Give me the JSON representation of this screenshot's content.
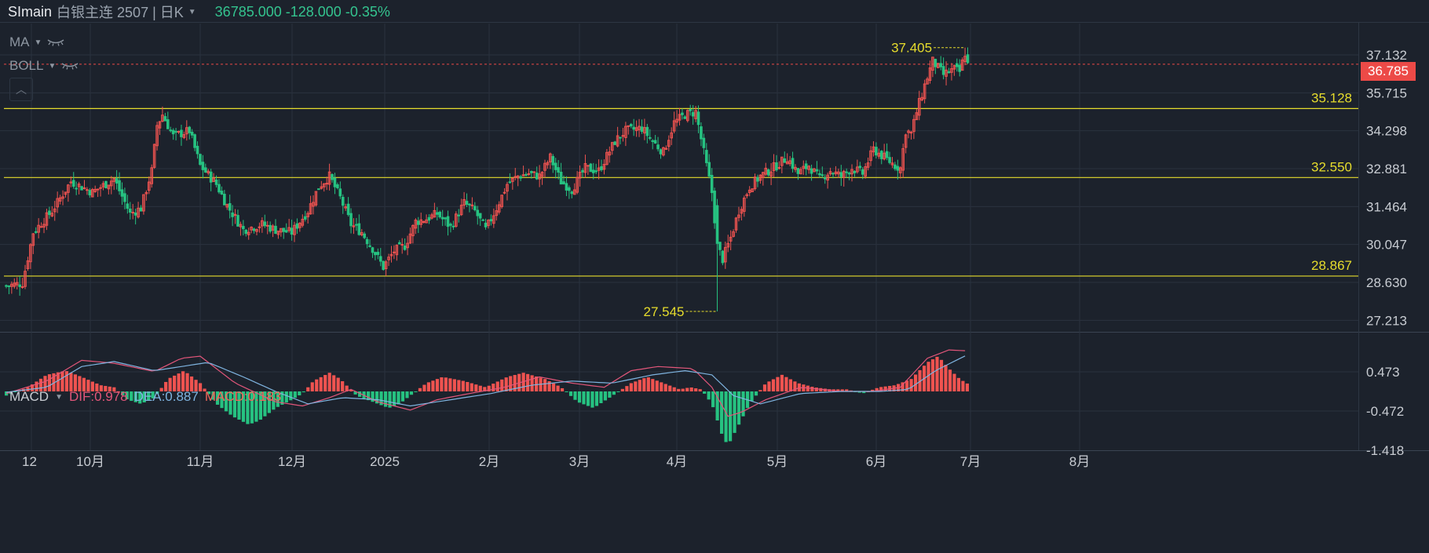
{
  "header": {
    "symbol": "SImain",
    "name": "白银主连 2507 | 日K",
    "quote": "36785.000 -128.000 -0.35%"
  },
  "indicators": {
    "ma_label": "MA",
    "boll_label": "BOLL"
  },
  "macd_legend": {
    "label": "MACD",
    "dif": "DIF:0.978",
    "dea": "DEA:0.887",
    "macd": "MACD:0.183"
  },
  "last_price_tag": "36.785",
  "colors": {
    "up": "#ef5350",
    "down": "#26c281",
    "level": "#e6dc2c",
    "dif": "#e2567a",
    "dea": "#7fb4e0",
    "bg": "#1c222c"
  },
  "chart_data": [
    {
      "type": "candlestick",
      "y_ticks": [
        "37.132",
        "35.715",
        "34.298",
        "32.881",
        "31.464",
        "30.047",
        "28.630",
        "27.213"
      ],
      "ylim": [
        27.213,
        37.132
      ],
      "x_labels": [
        "12",
        "10月",
        "11月",
        "12月",
        "2025",
        "2月",
        "3月",
        "4月",
        "5月",
        "6月",
        "7月",
        "8月"
      ],
      "horizontal_levels": [
        {
          "value": 35.128,
          "label": "35.128"
        },
        {
          "value": 32.55,
          "label": "32.550"
        },
        {
          "value": 28.867,
          "label": "28.867"
        }
      ],
      "annotations": [
        {
          "label": "37.405",
          "value": 37.405
        },
        {
          "label": "27.545",
          "value": 27.545
        }
      ],
      "last_price": 36.785,
      "close_path": [
        [
          0,
          28.5
        ],
        [
          6,
          28.6
        ],
        [
          10,
          30.5
        ],
        [
          17,
          31.3
        ],
        [
          24,
          32.4
        ],
        [
          32,
          32.0
        ],
        [
          40,
          32.5
        ],
        [
          46,
          31.2
        ],
        [
          50,
          31.4
        ],
        [
          54,
          32.8
        ],
        [
          56,
          34.5
        ],
        [
          58,
          34.9
        ],
        [
          62,
          34.1
        ],
        [
          68,
          34.3
        ],
        [
          72,
          33.0
        ],
        [
          78,
          32.3
        ],
        [
          82,
          31.5
        ],
        [
          88,
          30.6
        ],
        [
          95,
          30.8
        ],
        [
          100,
          30.6
        ],
        [
          106,
          30.5
        ],
        [
          112,
          31.3
        ],
        [
          116,
          32.2
        ],
        [
          120,
          32.6
        ],
        [
          124,
          31.8
        ],
        [
          128,
          30.8
        ],
        [
          132,
          30.5
        ],
        [
          136,
          29.9
        ],
        [
          140,
          29.2
        ],
        [
          144,
          29.8
        ],
        [
          148,
          30.0
        ],
        [
          152,
          30.9
        ],
        [
          156,
          31.0
        ],
        [
          160,
          31.2
        ],
        [
          165,
          30.7
        ],
        [
          170,
          31.6
        ],
        [
          174,
          31.3
        ],
        [
          178,
          30.6
        ],
        [
          182,
          31.4
        ],
        [
          186,
          32.3
        ],
        [
          190,
          32.6
        ],
        [
          194,
          32.7
        ],
        [
          198,
          32.6
        ],
        [
          202,
          33.3
        ],
        [
          206,
          32.4
        ],
        [
          210,
          32.1
        ],
        [
          215,
          32.9
        ],
        [
          220,
          32.8
        ],
        [
          226,
          33.9
        ],
        [
          230,
          34.3
        ],
        [
          236,
          34.4
        ],
        [
          240,
          33.9
        ],
        [
          244,
          33.5
        ],
        [
          248,
          34.6
        ],
        [
          252,
          34.9
        ],
        [
          256,
          35.0
        ],
        [
          262,
          32.0
        ],
        [
          264,
          30.0
        ],
        [
          266,
          29.5
        ],
        [
          269,
          30.3
        ],
        [
          272,
          31.3
        ],
        [
          276,
          32.2
        ],
        [
          280,
          32.6
        ],
        [
          286,
          33.0
        ],
        [
          290,
          33.3
        ],
        [
          294,
          32.7
        ],
        [
          298,
          33.0
        ],
        [
          302,
          32.5
        ],
        [
          306,
          32.8
        ],
        [
          310,
          32.6
        ],
        [
          314,
          32.9
        ],
        [
          318,
          32.7
        ],
        [
          322,
          33.6
        ],
        [
          326,
          33.3
        ],
        [
          330,
          33.0
        ],
        [
          332,
          32.9
        ],
        [
          334,
          34.3
        ],
        [
          336,
          34.2
        ],
        [
          338,
          35.0
        ],
        [
          341,
          36.0
        ],
        [
          344,
          36.9
        ],
        [
          348,
          36.4
        ],
        [
          352,
          36.6
        ],
        [
          354,
          36.5
        ],
        [
          356,
          37.2
        ],
        [
          357,
          36.785
        ]
      ]
    },
    {
      "type": "macd",
      "y_ticks": [
        "0.473",
        "-0.472",
        "-1.418"
      ],
      "ylim": [
        -1.418,
        1.418
      ],
      "dif": 0.978,
      "dea": 0.887,
      "macd": 0.183,
      "dif_path": [
        [
          0,
          -0.05
        ],
        [
          15,
          0.25
        ],
        [
          28,
          0.75
        ],
        [
          40,
          0.68
        ],
        [
          55,
          0.48
        ],
        [
          65,
          0.8
        ],
        [
          72,
          0.85
        ],
        [
          85,
          0.2
        ],
        [
          100,
          -0.25
        ],
        [
          110,
          -0.35
        ],
        [
          120,
          -0.15
        ],
        [
          128,
          0.05
        ],
        [
          138,
          -0.25
        ],
        [
          150,
          -0.45
        ],
        [
          160,
          -0.2
        ],
        [
          172,
          -0.05
        ],
        [
          185,
          0.1
        ],
        [
          198,
          0.35
        ],
        [
          210,
          0.2
        ],
        [
          222,
          0.1
        ],
        [
          232,
          0.5
        ],
        [
          242,
          0.6
        ],
        [
          255,
          0.55
        ],
        [
          262,
          0.1
        ],
        [
          268,
          -0.6
        ],
        [
          273,
          -0.5
        ],
        [
          282,
          -0.2
        ],
        [
          295,
          0.1
        ],
        [
          310,
          0.0
        ],
        [
          322,
          0.0
        ],
        [
          332,
          0.1
        ],
        [
          342,
          0.8
        ],
        [
          350,
          1.0
        ],
        [
          357,
          0.978
        ]
      ],
      "dea_path": [
        [
          0,
          -0.02
        ],
        [
          15,
          0.1
        ],
        [
          28,
          0.6
        ],
        [
          40,
          0.72
        ],
        [
          55,
          0.5
        ],
        [
          65,
          0.6
        ],
        [
          75,
          0.7
        ],
        [
          88,
          0.35
        ],
        [
          100,
          0.0
        ],
        [
          112,
          -0.3
        ],
        [
          125,
          -0.15
        ],
        [
          138,
          -0.2
        ],
        [
          150,
          -0.35
        ],
        [
          165,
          -0.2
        ],
        [
          180,
          -0.05
        ],
        [
          195,
          0.15
        ],
        [
          210,
          0.25
        ],
        [
          225,
          0.2
        ],
        [
          240,
          0.4
        ],
        [
          252,
          0.5
        ],
        [
          262,
          0.4
        ],
        [
          270,
          -0.1
        ],
        [
          280,
          -0.3
        ],
        [
          295,
          -0.05
        ],
        [
          310,
          0.0
        ],
        [
          325,
          0.0
        ],
        [
          335,
          0.05
        ],
        [
          345,
          0.5
        ],
        [
          357,
          0.887
        ]
      ],
      "hist_path": [
        [
          0,
          -0.1
        ],
        [
          8,
          0.1
        ],
        [
          15,
          0.4
        ],
        [
          22,
          0.5
        ],
        [
          28,
          0.35
        ],
        [
          35,
          0.15
        ],
        [
          40,
          0.1
        ],
        [
          45,
          -0.2
        ],
        [
          50,
          -0.3
        ],
        [
          55,
          -0.15
        ],
        [
          60,
          0.3
        ],
        [
          66,
          0.5
        ],
        [
          72,
          0.2
        ],
        [
          78,
          -0.3
        ],
        [
          84,
          -0.6
        ],
        [
          90,
          -0.8
        ],
        [
          94,
          -0.7
        ],
        [
          100,
          -0.4
        ],
        [
          106,
          -0.2
        ],
        [
          110,
          -0.05
        ],
        [
          114,
          0.25
        ],
        [
          120,
          0.45
        ],
        [
          124,
          0.3
        ],
        [
          130,
          -0.1
        ],
        [
          136,
          -0.25
        ],
        [
          142,
          -0.4
        ],
        [
          146,
          -0.3
        ],
        [
          150,
          -0.1
        ],
        [
          156,
          0.2
        ],
        [
          162,
          0.35
        ],
        [
          170,
          0.25
        ],
        [
          178,
          0.1
        ],
        [
          186,
          0.35
        ],
        [
          192,
          0.45
        ],
        [
          200,
          0.3
        ],
        [
          206,
          0.1
        ],
        [
          212,
          -0.25
        ],
        [
          218,
          -0.4
        ],
        [
          224,
          -0.15
        ],
        [
          232,
          0.2
        ],
        [
          238,
          0.35
        ],
        [
          244,
          0.2
        ],
        [
          250,
          0.05
        ],
        [
          254,
          0.1
        ],
        [
          258,
          0.05
        ],
        [
          262,
          -0.3
        ],
        [
          266,
          -1.1
        ],
        [
          268,
          -1.3
        ],
        [
          272,
          -0.8
        ],
        [
          276,
          -0.3
        ],
        [
          282,
          0.2
        ],
        [
          288,
          0.4
        ],
        [
          294,
          0.2
        ],
        [
          300,
          0.1
        ],
        [
          306,
          0.05
        ],
        [
          312,
          0.05
        ],
        [
          318,
          -0.05
        ],
        [
          324,
          0.1
        ],
        [
          330,
          0.15
        ],
        [
          336,
          0.3
        ],
        [
          342,
          0.7
        ],
        [
          346,
          0.85
        ],
        [
          350,
          0.55
        ],
        [
          354,
          0.3
        ],
        [
          357,
          0.183
        ]
      ]
    }
  ]
}
